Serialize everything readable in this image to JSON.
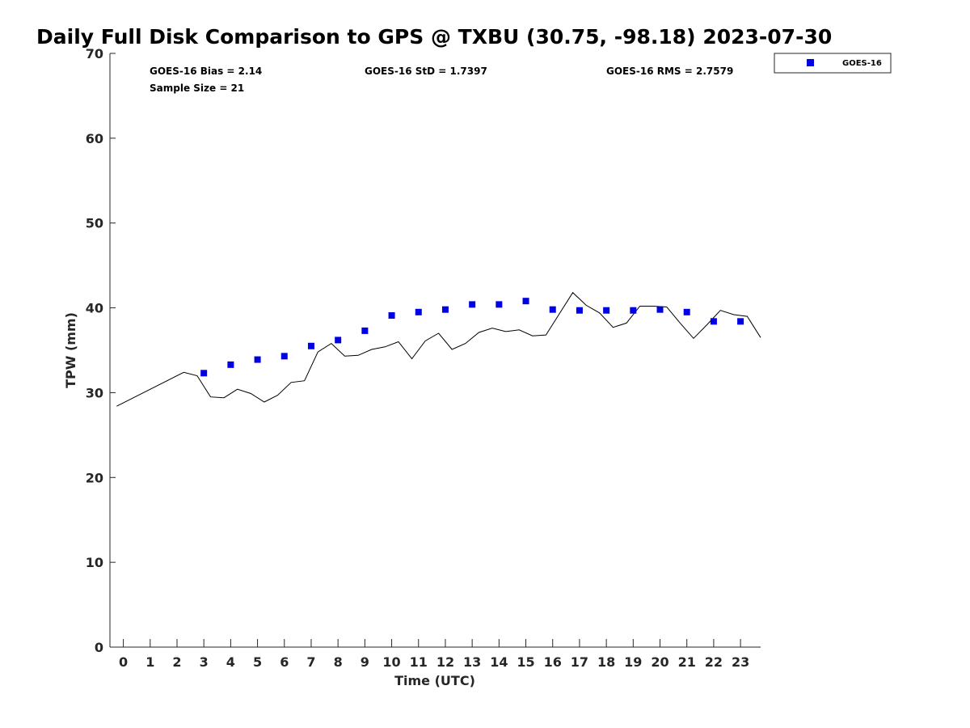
{
  "chart_data": {
    "type": "scatter",
    "title": "Daily Full Disk Comparison to GPS @ TXBU (30.75, -98.18) 2023-07-30",
    "xlabel": "Time (UTC)",
    "ylabel": "TPW (mm)",
    "xlim": [
      -0.5,
      23.75
    ],
    "ylim": [
      0,
      70
    ],
    "x_ticks": [
      "0",
      "1",
      "2",
      "3",
      "4",
      "5",
      "6",
      "7",
      "8",
      "9",
      "10",
      "11",
      "12",
      "13",
      "14",
      "15",
      "16",
      "17",
      "18",
      "19",
      "20",
      "21",
      "22",
      "23"
    ],
    "y_ticks": [
      "0",
      "10",
      "20",
      "30",
      "40",
      "50",
      "60",
      "70"
    ],
    "grid": false,
    "legend_position": "top-right outside",
    "stats": {
      "bias": "GOES-16 Bias = 2.14",
      "std": "GOES-16 StD = 1.7397",
      "rms": "GOES-16 RMS = 2.7579",
      "sample": "Sample Size = 21"
    },
    "series": [
      {
        "name": "GOES-16",
        "kind": "scatter",
        "color": "#0000e6",
        "marker": "square",
        "x": [
          3,
          4,
          5,
          6,
          7,
          8,
          9,
          10,
          11,
          12,
          13,
          14,
          15,
          16,
          17,
          18,
          19,
          20,
          21,
          22,
          23
        ],
        "y": [
          32.3,
          33.3,
          33.9,
          34.3,
          35.5,
          36.2,
          37.3,
          39.1,
          39.5,
          39.8,
          40.4,
          40.4,
          40.8,
          39.8,
          39.7,
          39.7,
          39.7,
          39.8,
          39.5,
          38.4,
          38.4
        ]
      },
      {
        "kind": "line",
        "color": "#000000",
        "x": [
          -0.25,
          2.25,
          2.75,
          3.25,
          3.75,
          4.25,
          4.75,
          5.25,
          5.75,
          6.25,
          6.75,
          7.25,
          7.75,
          8.25,
          8.75,
          9.25,
          9.75,
          10.25,
          10.75,
          11.25,
          11.75,
          12.25,
          12.75,
          13.25,
          13.75,
          14.25,
          14.75,
          15.25,
          15.75,
          16.75,
          17.25,
          17.75,
          18.25,
          18.75,
          19.25,
          19.75,
          20.25,
          20.75,
          21.25,
          21.75,
          22.25,
          22.75,
          23.25,
          23.75
        ],
        "y": [
          28.4,
          32.4,
          32.0,
          29.5,
          29.4,
          30.4,
          29.9,
          28.9,
          29.7,
          31.2,
          31.4,
          34.8,
          35.8,
          34.3,
          34.4,
          35.1,
          35.4,
          36.0,
          34.0,
          36.1,
          37.0,
          35.1,
          35.8,
          37.1,
          37.6,
          37.2,
          37.4,
          36.7,
          36.8,
          41.8,
          40.3,
          39.4,
          37.7,
          38.2,
          40.2,
          40.2,
          40.1,
          38.2,
          36.4,
          38.0,
          39.7,
          39.2,
          39.0,
          36.5
        ]
      }
    ]
  }
}
